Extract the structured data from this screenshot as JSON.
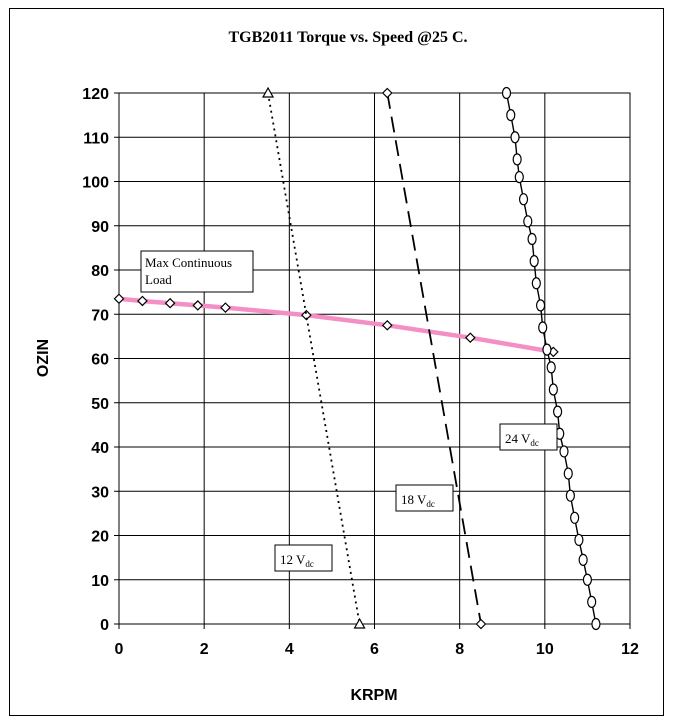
{
  "chart_data": {
    "type": "line",
    "title": "TGB2011 Torque vs. Speed @25 C.",
    "xlabel": "KRPM",
    "ylabel": "OZIN",
    "xlim": [
      0,
      12
    ],
    "ylim": [
      0,
      120
    ],
    "x_ticks": [
      0,
      2,
      4,
      6,
      8,
      10,
      12
    ],
    "y_ticks": [
      0,
      10,
      20,
      30,
      40,
      50,
      60,
      70,
      80,
      90,
      100,
      110,
      120
    ],
    "grid": true,
    "series": [
      {
        "name": "12 Vdc",
        "label_main": "12 V",
        "label_sub": "dc",
        "color": "#000000",
        "style": "dotted",
        "marker": "triangle",
        "points": [
          [
            3.5,
            120
          ],
          [
            5.65,
            0
          ]
        ]
      },
      {
        "name": "18 Vdc",
        "label_main": "18 V",
        "label_sub": "dc",
        "color": "#000000",
        "style": "dashed",
        "marker": "diamond",
        "points": [
          [
            6.3,
            120
          ],
          [
            8.5,
            0
          ]
        ]
      },
      {
        "name": "24 Vdc",
        "label_main": "24 V",
        "label_sub": "dc",
        "color": "#000000",
        "style": "solid",
        "marker": "circle",
        "points": [
          [
            9.1,
            120
          ],
          [
            9.2,
            115
          ],
          [
            9.3,
            110
          ],
          [
            9.35,
            105
          ],
          [
            9.4,
            101
          ],
          [
            9.5,
            96
          ],
          [
            9.6,
            91
          ],
          [
            9.7,
            87
          ],
          [
            9.75,
            82
          ],
          [
            9.8,
            77
          ],
          [
            9.9,
            72
          ],
          [
            9.95,
            67
          ],
          [
            10.05,
            62
          ],
          [
            10.15,
            58
          ],
          [
            10.2,
            53
          ],
          [
            10.3,
            48
          ],
          [
            10.35,
            43
          ],
          [
            10.45,
            39
          ],
          [
            10.55,
            34
          ],
          [
            10.6,
            29
          ],
          [
            10.7,
            24
          ],
          [
            10.8,
            19
          ],
          [
            10.9,
            14.5
          ],
          [
            11.0,
            10
          ],
          [
            11.1,
            5
          ],
          [
            11.2,
            0
          ]
        ]
      },
      {
        "name": "Max Continuous Load",
        "label_lines": [
          "Max Continuous",
          "Load"
        ],
        "color": "#f48fc6",
        "style": "solid",
        "marker": "diamond",
        "points": [
          [
            0,
            73.5
          ],
          [
            0.55,
            73
          ],
          [
            1.2,
            72.5
          ],
          [
            1.85,
            72
          ],
          [
            2.5,
            71.5
          ],
          [
            4.4,
            69.8
          ],
          [
            6.3,
            67.5
          ],
          [
            8.25,
            64.7
          ],
          [
            10.2,
            61.5
          ]
        ]
      }
    ]
  }
}
